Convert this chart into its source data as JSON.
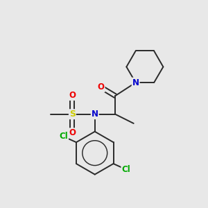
{
  "background_color": "#e8e8e8",
  "bond_color": "#2a2a2a",
  "atom_colors": {
    "N": "#0000cc",
    "O": "#ee0000",
    "S": "#cccc00",
    "Cl": "#00aa00",
    "C": "#2a2a2a"
  },
  "figsize": [
    3.0,
    3.0
  ],
  "dpi": 100
}
